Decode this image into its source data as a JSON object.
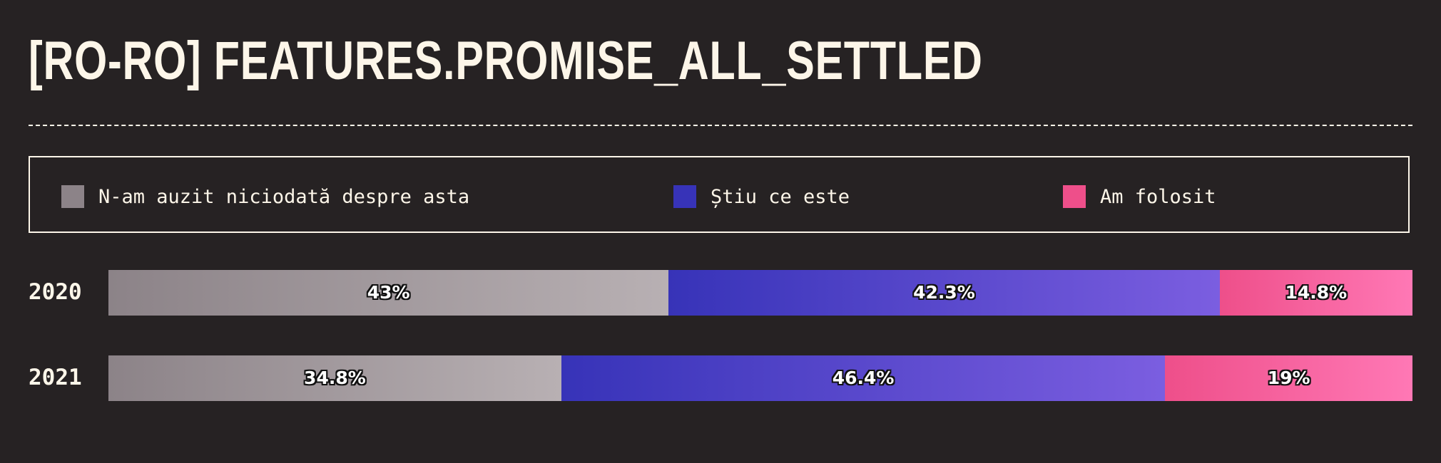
{
  "title": "[RO-RO] FEATURES.PROMISE_ALL_SETTLED",
  "legend": [
    {
      "label": "N-am auzit niciodată despre asta",
      "color": "#8c8388"
    },
    {
      "label": "Știu ce este",
      "color": "#3733b8"
    },
    {
      "label": "Am folosit",
      "color": "#ee4f8a"
    }
  ],
  "chart_data": {
    "type": "bar",
    "stacked": true,
    "orientation": "horizontal",
    "categories": [
      "2020",
      "2021"
    ],
    "series": [
      {
        "name": "N-am auzit niciodată despre asta",
        "values": [
          43,
          34.8
        ],
        "labels": [
          "43%",
          "34.8%"
        ],
        "color_start": "#8c8388",
        "color_end": "#b8b0b3"
      },
      {
        "name": "Știu ce este",
        "values": [
          42.3,
          46.4
        ],
        "labels": [
          "42.3%",
          "46.4%"
        ],
        "color_start": "#3733b8",
        "color_end": "#7b5ee0"
      },
      {
        "name": "Am folosit",
        "values": [
          14.8,
          19
        ],
        "labels": [
          "14.8%",
          "19%"
        ],
        "color_start": "#ee4f8a",
        "color_end": "#ff78b5"
      }
    ]
  }
}
